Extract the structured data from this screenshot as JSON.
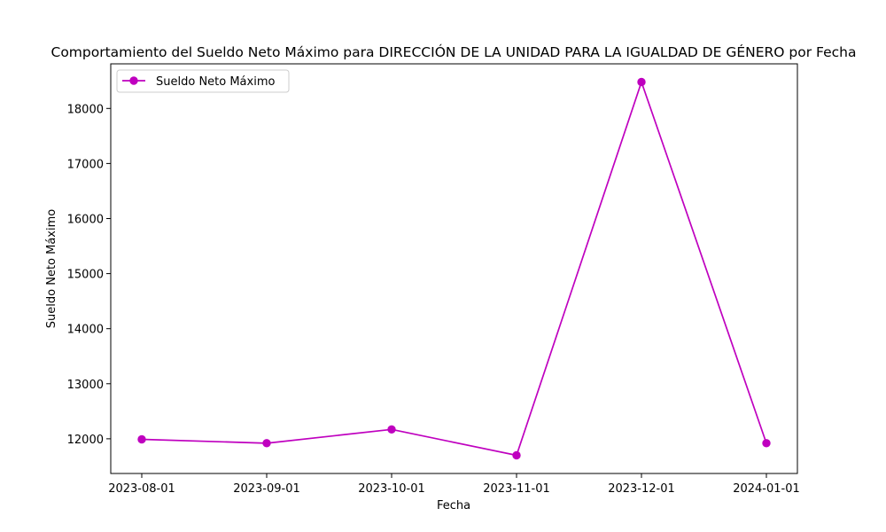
{
  "chart_data": {
    "type": "line",
    "title": "Comportamiento del Sueldo Neto Máximo para DIRECCIÓN DE LA UNIDAD PARA LA IGUALDAD DE GÉNERO por Fecha",
    "xlabel": "Fecha",
    "ylabel": "Sueldo Neto Máximo",
    "categories": [
      "2023-08-01",
      "2023-09-01",
      "2023-10-01",
      "2023-11-01",
      "2023-12-01",
      "2024-01-01"
    ],
    "series": [
      {
        "name": "Sueldo Neto Máximo",
        "color": "#bf00bf",
        "marker": "circle",
        "values": [
          11990,
          11920,
          12170,
          11700,
          18480,
          11920
        ]
      }
    ],
    "ylim": [
      11370,
      18810
    ],
    "yticks": [
      12000,
      13000,
      14000,
      15000,
      16000,
      17000,
      18000
    ],
    "grid": false,
    "legend_position": "upper-left"
  }
}
